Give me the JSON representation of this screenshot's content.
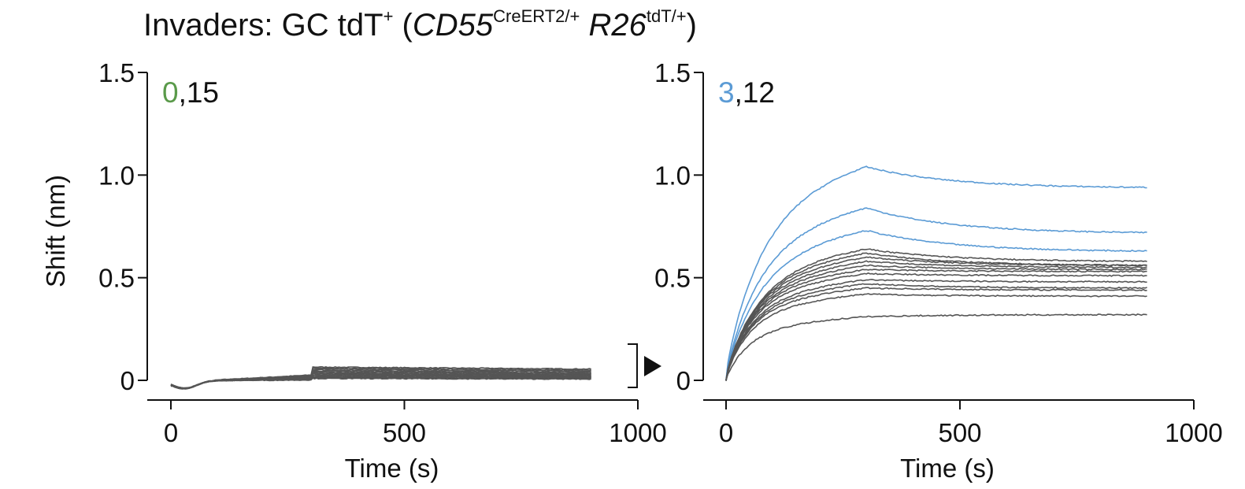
{
  "figure_title": {
    "prefix": "Invaders: GC tdT",
    "prefix_sup": "+",
    "open": " (",
    "gene1": "CD55",
    "gene1_sup": "CreERT2/+",
    "gene2": "R26",
    "gene2_sup": "tdT/+",
    "close": ")"
  },
  "colors": {
    "nonbinder": "#555555",
    "binder_left": "#5a9a4a",
    "binder_right": "#5b9bd5",
    "axis": "#111111"
  },
  "chart_data": [
    {
      "type": "line",
      "panel": "left",
      "xlabel": "Time (s)",
      "ylabel": "Shift (nm)",
      "xlim": [
        0,
        1000
      ],
      "ylim": [
        0,
        1.5
      ],
      "xticks": [
        "0",
        "500",
        "1000"
      ],
      "yticks": [
        "0",
        "0.5",
        "1.0",
        "1.5"
      ],
      "counts": {
        "binders": "0",
        "separator": ",",
        "nonbinders": "15"
      },
      "association_end_s": 300,
      "trace_end_s": 900,
      "inset_marker": "zoom bracket with arrow toward right panel",
      "series": [
        {
          "kind": "nonbinder",
          "plateau": 0.065,
          "end": 0.055
        },
        {
          "kind": "nonbinder",
          "plateau": 0.06,
          "end": 0.05
        },
        {
          "kind": "nonbinder",
          "plateau": 0.055,
          "end": 0.045
        },
        {
          "kind": "nonbinder",
          "plateau": 0.05,
          "end": 0.04
        },
        {
          "kind": "nonbinder",
          "plateau": 0.045,
          "end": 0.035
        },
        {
          "kind": "nonbinder",
          "plateau": 0.04,
          "end": 0.032
        },
        {
          "kind": "nonbinder",
          "plateau": 0.036,
          "end": 0.028
        },
        {
          "kind": "nonbinder",
          "plateau": 0.032,
          "end": 0.025
        },
        {
          "kind": "nonbinder",
          "plateau": 0.028,
          "end": 0.022
        },
        {
          "kind": "nonbinder",
          "plateau": 0.025,
          "end": 0.02
        },
        {
          "kind": "nonbinder",
          "plateau": 0.022,
          "end": 0.017
        },
        {
          "kind": "nonbinder",
          "plateau": 0.018,
          "end": 0.014
        },
        {
          "kind": "nonbinder",
          "plateau": 0.015,
          "end": 0.012
        },
        {
          "kind": "nonbinder",
          "plateau": 0.012,
          "end": 0.009
        },
        {
          "kind": "nonbinder",
          "plateau": 0.009,
          "end": 0.006
        }
      ]
    },
    {
      "type": "line",
      "panel": "right",
      "xlabel": "Time (s)",
      "ylabel": "",
      "xlim": [
        0,
        1000
      ],
      "ylim": [
        0,
        1.5
      ],
      "xticks": [
        "0",
        "500",
        "1000"
      ],
      "yticks": [
        "0",
        "0.5",
        "1.0",
        "1.5"
      ],
      "counts": {
        "binders": "3",
        "separator": ",",
        "nonbinders": "12"
      },
      "association_end_s": 300,
      "trace_end_s": 900,
      "series": [
        {
          "kind": "binder",
          "plateau": 1.04,
          "end": 0.94
        },
        {
          "kind": "binder",
          "plateau": 0.84,
          "end": 0.72
        },
        {
          "kind": "binder",
          "plateau": 0.73,
          "end": 0.63
        },
        {
          "kind": "nonbinder",
          "plateau": 0.64,
          "end": 0.58
        },
        {
          "kind": "nonbinder",
          "plateau": 0.62,
          "end": 0.56
        },
        {
          "kind": "nonbinder",
          "plateau": 0.6,
          "end": 0.56
        },
        {
          "kind": "nonbinder",
          "plateau": 0.58,
          "end": 0.55
        },
        {
          "kind": "nonbinder",
          "plateau": 0.56,
          "end": 0.54
        },
        {
          "kind": "nonbinder",
          "plateau": 0.54,
          "end": 0.53
        },
        {
          "kind": "nonbinder",
          "plateau": 0.52,
          "end": 0.51
        },
        {
          "kind": "nonbinder",
          "plateau": 0.49,
          "end": 0.48
        },
        {
          "kind": "nonbinder",
          "plateau": 0.47,
          "end": 0.45
        },
        {
          "kind": "nonbinder",
          "plateau": 0.45,
          "end": 0.44
        },
        {
          "kind": "nonbinder",
          "plateau": 0.42,
          "end": 0.41
        },
        {
          "kind": "nonbinder",
          "plateau": 0.31,
          "end": 0.32
        }
      ]
    }
  ]
}
